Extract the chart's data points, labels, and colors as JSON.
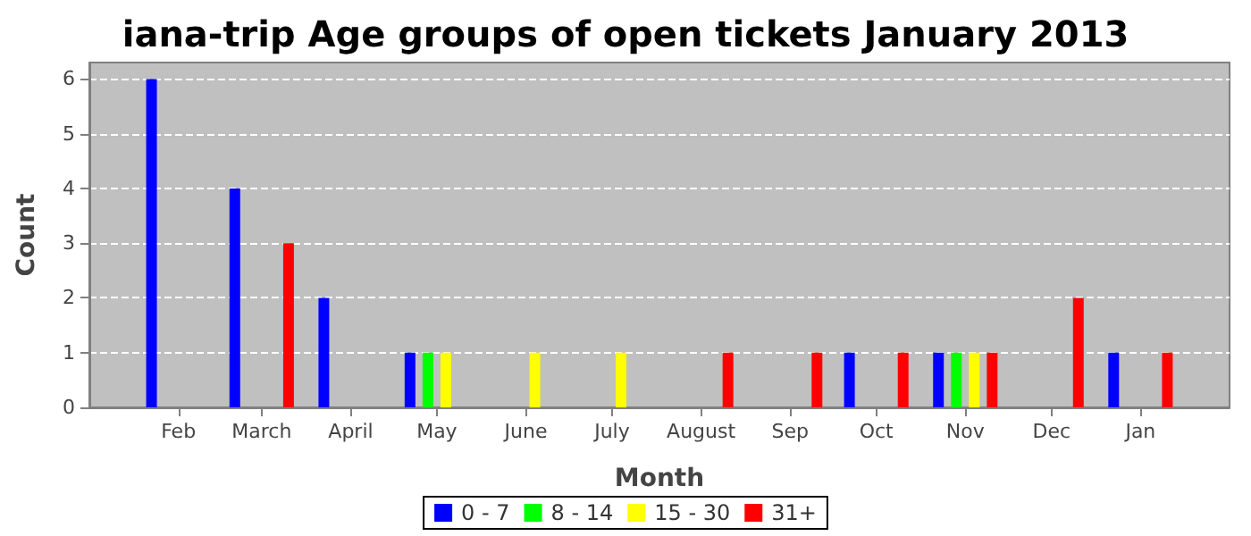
{
  "chart_data": {
    "type": "bar",
    "title": "iana-trip Age groups of open tickets January 2013",
    "xlabel": "Month",
    "ylabel": "Count",
    "x": [
      "2012-02",
      "2012-03",
      "2012-04",
      "2012-05",
      "2012-06",
      "2012-07",
      "2012-08",
      "2012-09",
      "2012-10",
      "2012-11",
      "2012-12",
      "2013-01"
    ],
    "xlim": [
      "2012-01",
      "2013-02"
    ],
    "xticks": [
      {
        "value": "2012-02",
        "label": "Feb"
      },
      {
        "value": "2012-03",
        "label": "March"
      },
      {
        "value": "2012-04",
        "label": "April"
      },
      {
        "value": "2012-05",
        "label": "May"
      },
      {
        "value": "2012-06",
        "label": "June"
      },
      {
        "value": "2012-07",
        "label": "July"
      },
      {
        "value": "2012-08",
        "label": "August"
      },
      {
        "value": "2012-09",
        "label": "Sep"
      },
      {
        "value": "2012-10",
        "label": "Oct"
      },
      {
        "value": "2012-11",
        "label": "Nov"
      },
      {
        "value": "2012-12",
        "label": "Dec"
      },
      {
        "value": "2013-01",
        "label": "Jan"
      }
    ],
    "series": [
      {
        "name": "0 - 7",
        "color": "#0000ff",
        "values": [
          6,
          4,
          2,
          1,
          null,
          null,
          null,
          null,
          1,
          1,
          null,
          1
        ]
      },
      {
        "name": "8 - 14",
        "color": "#00ff00",
        "values": [
          null,
          null,
          null,
          1,
          null,
          null,
          null,
          null,
          null,
          1,
          null,
          null
        ]
      },
      {
        "name": "15 - 30",
        "color": "#ffff00",
        "values": [
          null,
          null,
          null,
          1,
          1,
          1,
          null,
          null,
          null,
          1,
          null,
          null
        ]
      },
      {
        "name": "31+",
        "color": "#ff0000",
        "values": [
          null,
          3,
          null,
          null,
          null,
          null,
          1,
          1,
          1,
          1,
          2,
          1
        ]
      }
    ],
    "ylim": [
      0,
      6.3
    ],
    "yticks": [
      0,
      1,
      2,
      3,
      4,
      5,
      6
    ],
    "grid": "y",
    "legend": "bottom"
  }
}
